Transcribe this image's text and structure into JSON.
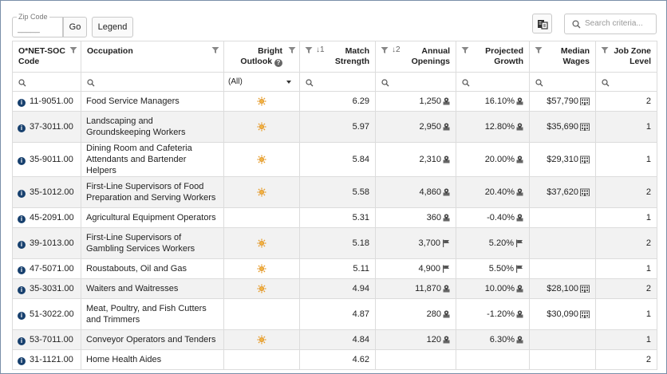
{
  "toolbar": {
    "zip_label": "Zip Code",
    "zip_value": "",
    "zip_placeholder": "_____",
    "go_label": "Go",
    "legend_label": "Legend",
    "search_placeholder": "Search criteria..."
  },
  "columns": {
    "code": "O*NET-SOC Code",
    "occupation": "Occupation",
    "bright_outlook": "Bright Outlook",
    "match_strength": "Match Strength",
    "match_sort": "↓1",
    "annual_openings": "Annual Openings",
    "annual_sort": "↓2",
    "projected_growth": "Projected Growth",
    "median_wages": "Median Wages",
    "job_zone": "Job Zone Level"
  },
  "filters": {
    "bright_outlook": "(All)"
  },
  "rows": [
    {
      "code": "11-9051.00",
      "occupation": "Food Service Managers",
      "bright": true,
      "match": "6.29",
      "openings": "1,250",
      "openings_icon": "map-pin-icon",
      "growth": "16.10%",
      "growth_icon": "map-pin-icon",
      "wages": "$57,790",
      "wages_icon": "building-icon",
      "zone": "2"
    },
    {
      "code": "37-3011.00",
      "occupation": "Landscaping and Groundskeeping Workers",
      "bright": true,
      "match": "5.97",
      "openings": "2,950",
      "openings_icon": "map-pin-icon",
      "growth": "12.80%",
      "growth_icon": "map-pin-icon",
      "wages": "$35,690",
      "wages_icon": "building-icon",
      "zone": "1"
    },
    {
      "code": "35-9011.00",
      "occupation": "Dining Room and Cafeteria Attendants and Bartender Helpers",
      "bright": true,
      "match": "5.84",
      "openings": "2,310",
      "openings_icon": "map-pin-icon",
      "growth": "20.00%",
      "growth_icon": "map-pin-icon",
      "wages": "$29,310",
      "wages_icon": "building-icon",
      "zone": "1"
    },
    {
      "code": "35-1012.00",
      "occupation": "First-Line Supervisors of Food Preparation and Serving Workers",
      "bright": true,
      "match": "5.58",
      "openings": "4,860",
      "openings_icon": "map-pin-icon",
      "growth": "20.40%",
      "growth_icon": "map-pin-icon",
      "wages": "$37,620",
      "wages_icon": "building-icon",
      "zone": "2"
    },
    {
      "code": "45-2091.00",
      "occupation": "Agricultural Equipment Operators",
      "bright": false,
      "match": "5.31",
      "openings": "360",
      "openings_icon": "map-pin-icon",
      "growth": "-0.40%",
      "growth_icon": "map-pin-icon",
      "wages": "",
      "wages_icon": "",
      "zone": "1"
    },
    {
      "code": "39-1013.00",
      "occupation": "First-Line Supervisors of Gambling Services Workers",
      "bright": true,
      "match": "5.18",
      "openings": "3,700",
      "openings_icon": "flag-icon",
      "growth": "5.20%",
      "growth_icon": "flag-icon",
      "wages": "",
      "wages_icon": "",
      "zone": "2"
    },
    {
      "code": "47-5071.00",
      "occupation": "Roustabouts, Oil and Gas",
      "bright": true,
      "match": "5.11",
      "openings": "4,900",
      "openings_icon": "flag-icon",
      "growth": "5.50%",
      "growth_icon": "flag-icon",
      "wages": "",
      "wages_icon": "",
      "zone": "1"
    },
    {
      "code": "35-3031.00",
      "occupation": "Waiters and Waitresses",
      "bright": true,
      "match": "4.94",
      "openings": "11,870",
      "openings_icon": "map-pin-icon",
      "growth": "10.00%",
      "growth_icon": "map-pin-icon",
      "wages": "$28,100",
      "wages_icon": "building-icon",
      "zone": "2"
    },
    {
      "code": "51-3022.00",
      "occupation": "Meat, Poultry, and Fish Cutters and Trimmers",
      "bright": false,
      "match": "4.87",
      "openings": "280",
      "openings_icon": "map-pin-icon",
      "growth": "-1.20%",
      "growth_icon": "map-pin-icon",
      "wages": "$30,090",
      "wages_icon": "building-icon",
      "zone": "1"
    },
    {
      "code": "53-7011.00",
      "occupation": "Conveyor Operators and Tenders",
      "bright": true,
      "match": "4.84",
      "openings": "120",
      "openings_icon": "map-pin-icon",
      "growth": "6.30%",
      "growth_icon": "map-pin-icon",
      "wages": "",
      "wages_icon": "",
      "zone": "1"
    },
    {
      "code": "31-1121.00",
      "occupation": "Home Health Aides",
      "bright": false,
      "match": "4.62",
      "openings": "",
      "openings_icon": "",
      "growth": "",
      "growth_icon": "",
      "wages": "",
      "wages_icon": "",
      "zone": "2"
    }
  ],
  "colors": {
    "info_icon": "#17406e",
    "bright_outlook_sun": "#e8a030",
    "row_stripe": "#f2f2f2",
    "border": "#dcdcdc"
  }
}
